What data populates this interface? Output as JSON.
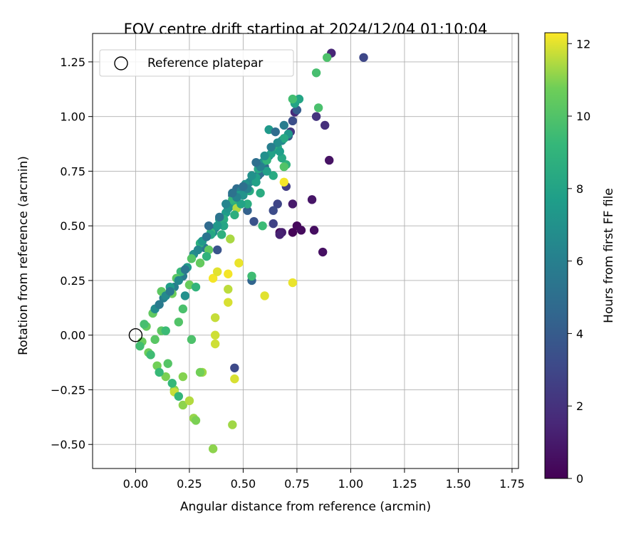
{
  "chart_data": {
    "type": "scatter",
    "title": "FOV centre drift starting at 2024/12/04 01:10:04",
    "xlabel": "Angular distance from reference (arcmin)",
    "ylabel": "Rotation from reference (arcmin)",
    "xlim": [
      -0.2,
      1.78
    ],
    "ylim": [
      -0.61,
      1.38
    ],
    "xticks": [
      "0.00",
      "0.25",
      "0.50",
      "0.75",
      "1.00",
      "1.25",
      "1.50",
      "1.75"
    ],
    "yticks": [
      "−0.50",
      "−0.25",
      "0.00",
      "0.25",
      "0.50",
      "0.75",
      "1.00",
      "1.25"
    ],
    "grid": true,
    "legend": {
      "placement": "top-left",
      "entries": [
        "Reference platepar"
      ]
    },
    "reference_point": [
      0.0,
      0.0
    ],
    "colorbar": {
      "label": "Hours from first FF file",
      "range": [
        0,
        12.3
      ],
      "ticks": [
        "0",
        "2",
        "4",
        "6",
        "8",
        "10",
        "12"
      ],
      "colormap": "viridis"
    },
    "columns": [
      "x",
      "y",
      "hours"
    ],
    "points": [
      [
        0.73,
        0.47,
        0.1
      ],
      [
        0.67,
        0.47,
        0.2
      ],
      [
        0.75,
        0.5,
        0.3
      ],
      [
        0.77,
        0.48,
        0.4
      ],
      [
        0.83,
        0.48,
        0.5
      ],
      [
        0.87,
        0.38,
        0.6
      ],
      [
        0.9,
        0.8,
        0.7
      ],
      [
        0.82,
        0.62,
        0.8
      ],
      [
        0.73,
        0.6,
        1.0
      ],
      [
        0.68,
        0.47,
        1.1
      ],
      [
        0.67,
        0.46,
        1.3
      ],
      [
        0.91,
        1.29,
        1.5
      ],
      [
        0.74,
        1.02,
        1.7
      ],
      [
        0.88,
        0.96,
        1.9
      ],
      [
        0.84,
        1.0,
        2.1
      ],
      [
        0.72,
        0.93,
        2.3
      ],
      [
        0.7,
        0.68,
        2.5
      ],
      [
        0.64,
        0.51,
        2.7
      ],
      [
        0.66,
        0.6,
        2.9
      ],
      [
        1.06,
        1.27,
        3.0
      ],
      [
        0.46,
        -0.15,
        3.1
      ],
      [
        0.64,
        0.57,
        3.2
      ],
      [
        0.73,
        0.98,
        3.3
      ],
      [
        0.55,
        0.52,
        3.5
      ],
      [
        0.38,
        0.39,
        3.6
      ],
      [
        0.71,
        0.91,
        3.8
      ],
      [
        0.75,
        1.03,
        4.0
      ],
      [
        0.57,
        0.73,
        4.1
      ],
      [
        0.52,
        0.57,
        4.3
      ],
      [
        0.54,
        0.25,
        4.5
      ],
      [
        0.6,
        0.77,
        4.6
      ],
      [
        0.45,
        0.64,
        4.8
      ],
      [
        0.47,
        0.67,
        4.9
      ],
      [
        0.58,
        0.74,
        5.1
      ],
      [
        0.4,
        0.53,
        5.3
      ],
      [
        0.37,
        0.49,
        5.4
      ],
      [
        0.32,
        0.4,
        5.6
      ],
      [
        0.22,
        0.27,
        5.7
      ],
      [
        0.13,
        0.17,
        5.9
      ],
      [
        0.18,
        0.22,
        6.0
      ],
      [
        0.49,
        0.66,
        6.1
      ],
      [
        0.55,
        0.71,
        6.2
      ],
      [
        0.62,
        0.82,
        6.3
      ],
      [
        0.68,
        0.89,
        6.4
      ],
      [
        0.53,
        0.7,
        6.5
      ],
      [
        0.44,
        0.59,
        6.6
      ],
      [
        0.36,
        0.47,
        6.7
      ],
      [
        0.27,
        0.37,
        6.8
      ],
      [
        0.23,
        0.18,
        6.9
      ],
      [
        0.51,
        0.69,
        7.0
      ],
      [
        0.59,
        0.79,
        7.1
      ],
      [
        0.65,
        0.85,
        7.2
      ],
      [
        0.71,
        0.92,
        7.3
      ],
      [
        0.62,
        0.94,
        7.4
      ],
      [
        0.48,
        0.64,
        7.5
      ],
      [
        0.42,
        0.56,
        7.6
      ],
      [
        0.39,
        0.53,
        7.7
      ],
      [
        0.56,
        0.72,
        7.8
      ],
      [
        0.63,
        0.83,
        7.9
      ],
      [
        0.74,
        1.06,
        8.0
      ],
      [
        0.76,
        1.08,
        8.1
      ],
      [
        0.57,
        0.76,
        8.2
      ],
      [
        0.69,
        0.9,
        8.3
      ],
      [
        0.53,
        0.66,
        8.4
      ],
      [
        0.46,
        0.61,
        8.5
      ],
      [
        0.41,
        0.53,
        8.6
      ],
      [
        0.3,
        0.42,
        8.7
      ],
      [
        0.66,
        0.86,
        8.8
      ],
      [
        0.7,
        0.78,
        8.9
      ],
      [
        0.61,
        0.8,
        9.0
      ],
      [
        0.45,
        0.62,
        9.1
      ],
      [
        0.35,
        0.47,
        9.2
      ],
      [
        0.21,
        0.29,
        9.3
      ],
      [
        0.59,
        0.5,
        9.4
      ],
      [
        0.54,
        0.27,
        9.5
      ],
      [
        0.73,
        1.08,
        9.6
      ],
      [
        0.84,
        1.2,
        9.7
      ],
      [
        0.85,
        1.04,
        9.8
      ],
      [
        0.89,
        1.27,
        9.9
      ],
      [
        0.69,
        0.77,
        10.0
      ],
      [
        0.26,
        0.35,
        10.1
      ],
      [
        0.19,
        0.26,
        10.2
      ],
      [
        0.12,
        0.2,
        10.3
      ],
      [
        0.08,
        0.1,
        10.4
      ],
      [
        0.05,
        0.04,
        10.5
      ],
      [
        0.03,
        -0.03,
        10.6
      ],
      [
        0.06,
        -0.08,
        10.7
      ],
      [
        0.1,
        -0.14,
        10.8
      ],
      [
        0.14,
        -0.19,
        10.9
      ],
      [
        0.18,
        -0.25,
        11.0
      ],
      [
        0.22,
        -0.32,
        11.1
      ],
      [
        0.27,
        -0.38,
        11.2
      ],
      [
        0.31,
        -0.17,
        11.3
      ],
      [
        0.44,
        0.44,
        11.4
      ],
      [
        0.47,
        0.58,
        11.5
      ],
      [
        0.43,
        0.21,
        11.6
      ],
      [
        0.37,
        0.08,
        11.7
      ],
      [
        0.37,
        -0.04,
        11.8
      ],
      [
        0.46,
        -0.2,
        11.9
      ],
      [
        0.6,
        0.18,
        12.0
      ],
      [
        0.73,
        0.24,
        12.1
      ],
      [
        0.69,
        0.7,
        12.2
      ],
      [
        0.36,
        0.26,
        12.2
      ],
      [
        0.43,
        0.28,
        12.2
      ],
      [
        0.48,
        0.33,
        12.1
      ],
      [
        0.38,
        0.29,
        12.0
      ],
      [
        0.43,
        0.15,
        11.9
      ],
      [
        0.37,
        0.0,
        11.8
      ],
      [
        0.18,
        -0.26,
        11.7
      ],
      [
        0.25,
        -0.3,
        11.5
      ],
      [
        0.45,
        -0.41,
        11.3
      ],
      [
        0.36,
        -0.52,
        11.1
      ],
      [
        0.22,
        -0.19,
        11.0
      ],
      [
        0.28,
        -0.39,
        10.9
      ],
      [
        0.3,
        -0.17,
        10.8
      ],
      [
        0.17,
        0.19,
        10.7
      ],
      [
        0.25,
        0.23,
        10.6
      ],
      [
        0.3,
        0.33,
        10.5
      ],
      [
        0.34,
        0.39,
        10.4
      ],
      [
        0.12,
        0.02,
        10.3
      ],
      [
        0.09,
        -0.02,
        10.2
      ],
      [
        0.15,
        -0.13,
        10.1
      ],
      [
        0.2,
        0.06,
        10.0
      ],
      [
        0.26,
        -0.02,
        9.9
      ],
      [
        0.22,
        0.12,
        9.8
      ],
      [
        0.04,
        0.05,
        9.7
      ],
      [
        0.02,
        -0.05,
        9.6
      ],
      [
        0.07,
        -0.09,
        9.5
      ],
      [
        0.14,
        0.02,
        9.4
      ],
      [
        0.11,
        -0.17,
        9.3
      ],
      [
        0.17,
        -0.22,
        9.2
      ],
      [
        0.2,
        -0.28,
        9.1
      ],
      [
        0.28,
        0.22,
        9.0
      ],
      [
        0.33,
        0.36,
        8.9
      ],
      [
        0.4,
        0.46,
        8.8
      ],
      [
        0.46,
        0.55,
        8.7
      ],
      [
        0.52,
        0.6,
        8.6
      ],
      [
        0.58,
        0.65,
        8.5
      ],
      [
        0.64,
        0.73,
        8.4
      ],
      [
        0.68,
        0.81,
        8.3
      ],
      [
        0.35,
        0.46,
        8.2
      ],
      [
        0.41,
        0.5,
        8.1
      ],
      [
        0.49,
        0.6,
        8.0
      ],
      [
        0.56,
        0.7,
        7.9
      ],
      [
        0.61,
        0.75,
        7.8
      ],
      [
        0.67,
        0.84,
        7.7
      ],
      [
        0.16,
        0.22,
        7.6
      ],
      [
        0.24,
        0.31,
        7.5
      ],
      [
        0.31,
        0.43,
        7.4
      ],
      [
        0.38,
        0.5,
        7.3
      ],
      [
        0.43,
        0.58,
        7.2
      ],
      [
        0.5,
        0.64,
        7.1
      ],
      [
        0.54,
        0.73,
        7.0
      ],
      [
        0.6,
        0.82,
        6.9
      ],
      [
        0.66,
        0.88,
        6.8
      ],
      [
        0.09,
        0.12,
        6.7
      ],
      [
        0.14,
        0.18,
        6.6
      ],
      [
        0.2,
        0.25,
        6.5
      ],
      [
        0.29,
        0.39,
        6.4
      ],
      [
        0.42,
        0.6,
        6.3
      ],
      [
        0.47,
        0.63,
        6.2
      ],
      [
        0.52,
        0.67,
        6.1
      ],
      [
        0.58,
        0.77,
        6.0
      ],
      [
        0.63,
        0.86,
        5.9
      ],
      [
        0.69,
        0.96,
        5.8
      ],
      [
        0.11,
        0.14,
        5.7
      ],
      [
        0.16,
        0.2,
        5.6
      ],
      [
        0.23,
        0.3,
        5.5
      ],
      [
        0.33,
        0.45,
        5.4
      ],
      [
        0.39,
        0.54,
        5.3
      ],
      [
        0.45,
        0.65,
        5.2
      ],
      [
        0.5,
        0.68,
        5.1
      ],
      [
        0.56,
        0.79,
        5.0
      ],
      [
        0.65,
        0.93,
        4.9
      ],
      [
        0.34,
        0.5,
        4.8
      ]
    ]
  }
}
